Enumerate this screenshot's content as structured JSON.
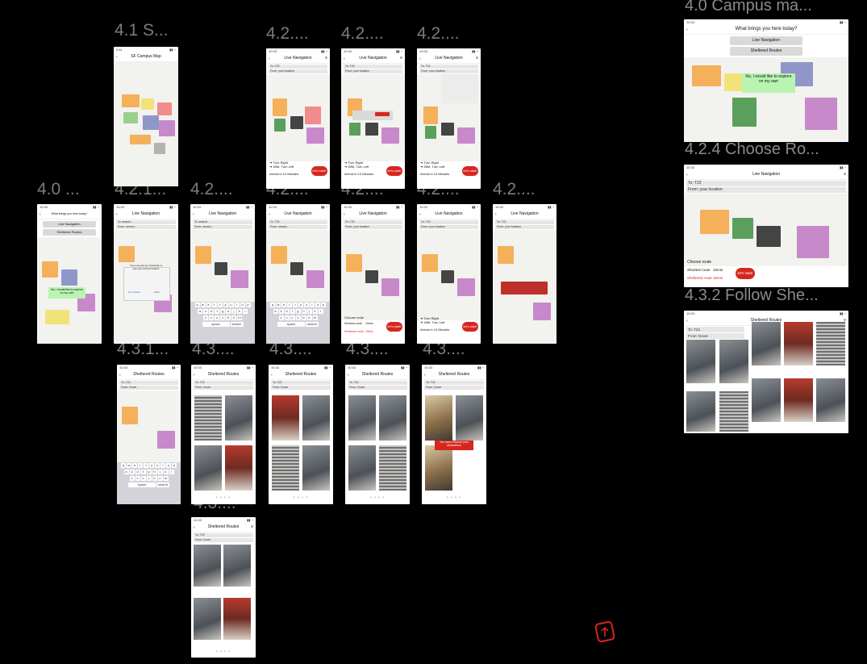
{
  "labels": {
    "l41": "4.1 S...",
    "l42a": "4.2....",
    "l42b": "4.2....",
    "l42c": "4.2....",
    "l40a": "4.0 ...",
    "l421": "4.2.1...",
    "l42d": "4.2....",
    "l42e": "4.2....",
    "l42f": "4.2....",
    "l42g": "4.2....",
    "l42h": "4.2....",
    "l431": "4.3.1...",
    "l43a": "4.3....",
    "l43b": "4.3....",
    "l43c": "4.3....",
    "l43d": "4.3....",
    "l43e": "4.3....",
    "l40big": "4.0 Campus ma...",
    "l424big": "4.2.4 Choose Ro...",
    "l432big": "4.3.2 Follow She..."
  },
  "screens": {
    "campus_map_title": "SF Campus Map",
    "live_nav_title": "Live Navigation",
    "sheltered_title": "Sheltered Routes",
    "what_brings": "What brings you here today?",
    "live_nav_btn": "Live Navigation",
    "sheltered_btn": "Sheltered Routes",
    "explore": "No, I would like to explore on my own",
    "to_search": "To: search...",
    "from_search": "From: search...",
    "to_t22": "To: T22",
    "from_location": "From: your location",
    "from_dover": "From: Dover",
    "turn_right": "➜ Turn Right",
    "turn_left": "➜ 50M, Turn Left",
    "arrival": "Arrival in 10 Minutes",
    "arrival_b": "Arrival in 10 Minutes",
    "lets_start": "let's start!",
    "choose_route": "Choose route",
    "route_short": "Shortest route",
    "route_shelter": "Sheltered route",
    "time_short": "10min",
    "time_shelter": "15min",
    "reached": "You have reached your destination!",
    "location_prompt": "\"smu.nus.edu.sg\" would like to use your current location",
    "allow": "Allow",
    "dont_allow": "Don't Allow",
    "keyboard_search": "search",
    "keyboard_space": "space"
  },
  "keyboard": {
    "row1": [
      "q",
      "w",
      "e",
      "r",
      "t",
      "y",
      "u",
      "i",
      "o",
      "p"
    ],
    "row2": [
      "a",
      "s",
      "d",
      "f",
      "g",
      "h",
      "j",
      "k",
      "l"
    ],
    "row3": [
      "z",
      "x",
      "c",
      "v",
      "b",
      "n",
      "m"
    ]
  },
  "colors": {
    "background": "#000000",
    "accent_red": "#d7261e",
    "accent_green": "#b9f5b0",
    "field_grey": "#e6e6e6"
  }
}
